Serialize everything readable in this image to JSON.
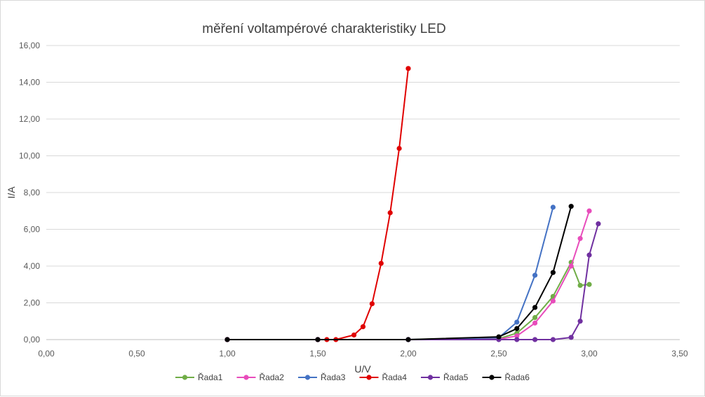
{
  "chart_data": {
    "type": "line",
    "title": "měření voltampérové charakteristiky LED",
    "xlabel": "U/V",
    "ylabel": "I/A",
    "xlim": [
      0,
      3.5
    ],
    "ylim": [
      0,
      16
    ],
    "x_ticks": [
      0,
      0.5,
      1.0,
      1.5,
      2.0,
      2.5,
      3.0,
      3.5
    ],
    "x_tick_labels": [
      "0,00",
      "0,50",
      "1,00",
      "1,50",
      "2,00",
      "2,50",
      "3,00",
      "3,50"
    ],
    "y_ticks": [
      0,
      2,
      4,
      6,
      8,
      10,
      12,
      14,
      16
    ],
    "y_tick_labels": [
      "0,00",
      "2,00",
      "4,00",
      "6,00",
      "8,00",
      "10,00",
      "12,00",
      "14,00",
      "16,00"
    ],
    "grid": "horizontal",
    "legend_position": "bottom",
    "series": [
      {
        "name": "Řada1",
        "color": "#70ad47",
        "x": [
          1.0,
          1.5,
          2.0,
          2.5,
          2.6,
          2.7,
          2.8,
          2.9,
          2.95,
          3.0
        ],
        "y": [
          0,
          0,
          0,
          0.05,
          0.35,
          1.2,
          2.35,
          4.2,
          2.95,
          3.0
        ]
      },
      {
        "name": "Řada2",
        "color": "#e84cbb",
        "x": [
          1.0,
          1.5,
          2.0,
          2.5,
          2.6,
          2.7,
          2.8,
          2.9,
          2.95,
          3.0
        ],
        "y": [
          0,
          0,
          0,
          0.02,
          0.2,
          0.9,
          2.1,
          4.0,
          5.5,
          7.0
        ]
      },
      {
        "name": "Řada3",
        "color": "#4472c4",
        "x": [
          1.0,
          1.5,
          2.0,
          2.5,
          2.6,
          2.7,
          2.8
        ],
        "y": [
          0,
          0,
          0,
          0.1,
          0.95,
          3.5,
          7.2
        ]
      },
      {
        "name": "Řada4",
        "color": "#e00000",
        "x": [
          1.0,
          1.5,
          1.55,
          1.6,
          1.7,
          1.75,
          1.8,
          1.85,
          1.9,
          1.95,
          2.0
        ],
        "y": [
          0,
          0,
          0,
          0,
          0.25,
          0.7,
          1.95,
          4.15,
          6.9,
          10.4,
          14.75
        ]
      },
      {
        "name": "Řada5",
        "color": "#7030a0",
        "x": [
          1.0,
          1.5,
          2.0,
          2.5,
          2.6,
          2.7,
          2.8,
          2.9,
          2.95,
          3.0,
          3.05
        ],
        "y": [
          0,
          0,
          0,
          0,
          0,
          0,
          0,
          0.12,
          1.0,
          4.6,
          6.3
        ]
      },
      {
        "name": "Řada6",
        "color": "#000000",
        "x": [
          1.0,
          1.5,
          2.0,
          2.5,
          2.6,
          2.7,
          2.8,
          2.9
        ],
        "y": [
          0,
          0,
          0,
          0.15,
          0.6,
          1.75,
          3.65,
          7.25
        ]
      }
    ]
  }
}
